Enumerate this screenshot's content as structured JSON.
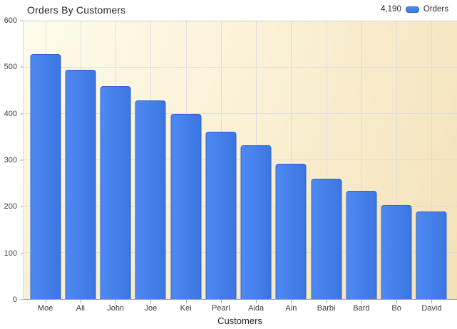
{
  "title": "Orders By Customers",
  "legend": {
    "total": "4,190",
    "series_label": "Orders"
  },
  "chart_data": {
    "type": "bar",
    "title": "Orders By Customers",
    "categories": [
      "Moe",
      "Ali",
      "John",
      "Joe",
      "Kei",
      "Pearl",
      "Aida",
      "Ain",
      "Barbi",
      "Bard",
      "Bo",
      "David"
    ],
    "values": [
      530,
      495,
      460,
      430,
      400,
      362,
      333,
      293,
      260,
      234,
      203,
      190
    ],
    "series_name": "Orders",
    "series_total": "4,190",
    "xlabel": "Customers",
    "ylabel": "",
    "ylim": [
      0,
      600
    ],
    "ytick_interval": 100,
    "grid": true,
    "legend_position": "top-right",
    "colors": {
      "bar_light": "#4e89f3",
      "bar_dark": "#3c76e2",
      "bar_border": "#2f63c9",
      "plot_bg_inner": "#fffef0",
      "plot_bg_mid": "#faf0d4",
      "plot_bg_outer": "#f0d9a9",
      "grid_line": "#d8d8df"
    }
  }
}
